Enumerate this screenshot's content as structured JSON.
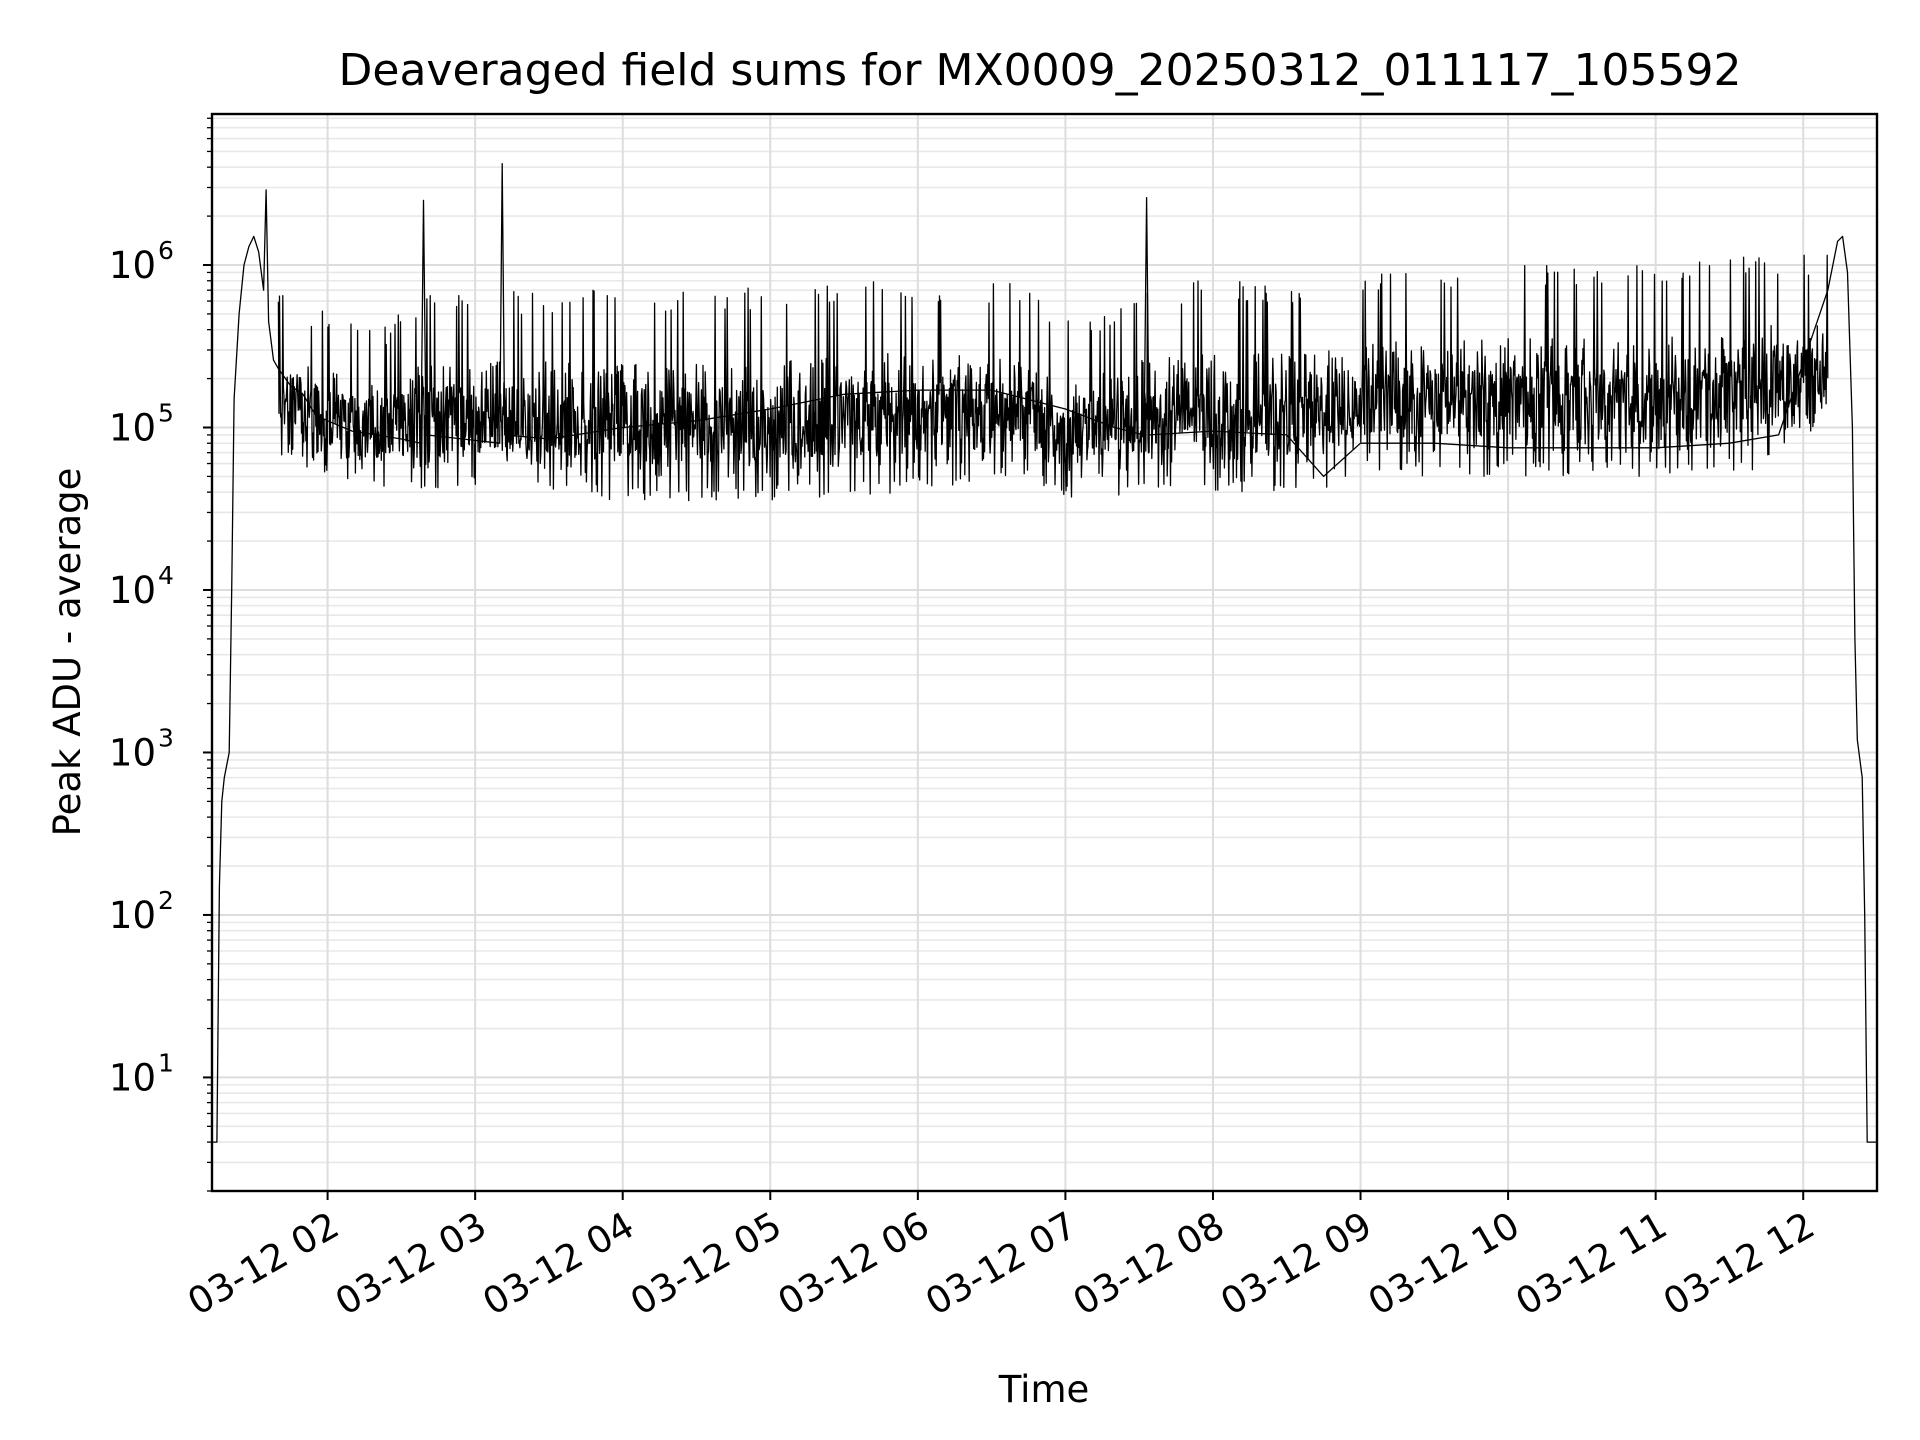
{
  "chart_data": {
    "type": "line",
    "title": "Deaveraged field sums for MX0009_20250312_011117_105592",
    "xlabel": "Time",
    "ylabel": "Peak ADU - average",
    "yscale": "log",
    "xlim": [
      "2025-03-12T01:13",
      "2025-03-12T12:30"
    ],
    "ylim": [
      2,
      8500000
    ],
    "grid": true,
    "grid_minor": true,
    "line_color": "#000000",
    "x_ticks": [
      {
        "value": "2025-03-12T02:00",
        "label": "03-12 02"
      },
      {
        "value": "2025-03-12T03:00",
        "label": "03-12 03"
      },
      {
        "value": "2025-03-12T04:00",
        "label": "03-12 04"
      },
      {
        "value": "2025-03-12T05:00",
        "label": "03-12 05"
      },
      {
        "value": "2025-03-12T06:00",
        "label": "03-12 06"
      },
      {
        "value": "2025-03-12T07:00",
        "label": "03-12 07"
      },
      {
        "value": "2025-03-12T08:00",
        "label": "03-12 08"
      },
      {
        "value": "2025-03-12T09:00",
        "label": "03-12 09"
      },
      {
        "value": "2025-03-12T10:00",
        "label": "03-12 10"
      },
      {
        "value": "2025-03-12T11:00",
        "label": "03-12 11"
      },
      {
        "value": "2025-03-12T12:00",
        "label": "03-12 12"
      }
    ],
    "y_ticks": [
      {
        "value": 10,
        "base": "10",
        "exp": "1"
      },
      {
        "value": 100,
        "base": "10",
        "exp": "2"
      },
      {
        "value": 1000,
        "base": "10",
        "exp": "3"
      },
      {
        "value": 10000,
        "base": "10",
        "exp": "4"
      },
      {
        "value": 100000,
        "base": "10",
        "exp": "5"
      },
      {
        "value": 1000000,
        "base": "10",
        "exp": "6"
      }
    ],
    "series": [
      {
        "points": [
          [
            "2025-03-12T01:13",
            4
          ],
          [
            "2025-03-12T01:15",
            4
          ],
          [
            "2025-03-12T01:16",
            150
          ],
          [
            "2025-03-12T01:17",
            500
          ],
          [
            "2025-03-12T01:18",
            700
          ],
          [
            "2025-03-12T01:20",
            1000
          ],
          [
            "2025-03-12T01:21",
            10000
          ],
          [
            "2025-03-12T01:22",
            150000
          ],
          [
            "2025-03-12T01:24",
            500000
          ],
          [
            "2025-03-12T01:26",
            1000000
          ],
          [
            "2025-03-12T01:28",
            1300000
          ],
          [
            "2025-03-12T01:30",
            1500000
          ],
          [
            "2025-03-12T01:32",
            1200000
          ],
          [
            "2025-03-12T01:34",
            700000
          ],
          [
            "2025-03-12T01:35",
            2900000
          ],
          [
            "2025-03-12T01:36",
            450000
          ],
          [
            "2025-03-12T01:38",
            260000
          ],
          [
            "2025-03-12T01:40",
            230000
          ],
          [
            "2025-03-12T01:45",
            180000
          ],
          [
            "2025-03-12T01:50",
            160000
          ],
          [
            "2025-03-12T01:55",
            120000
          ],
          [
            "2025-03-12T02:00",
            110000
          ],
          [
            "2025-03-12T02:10",
            95000
          ],
          [
            "2025-03-12T02:20",
            90000
          ],
          [
            "2025-03-12T02:30",
            85000
          ],
          [
            "2025-03-12T02:38",
            80000
          ],
          [
            "2025-03-12T02:39",
            2500000
          ],
          [
            "2025-03-12T02:40",
            90000
          ],
          [
            "2025-03-12T02:55",
            85000
          ],
          [
            "2025-03-12T03:10",
            80000
          ],
          [
            "2025-03-12T03:11",
            4200000
          ],
          [
            "2025-03-12T03:12",
            90000
          ],
          [
            "2025-03-12T03:30",
            85000
          ],
          [
            "2025-03-12T04:00",
            100000
          ],
          [
            "2025-03-12T04:30",
            110000
          ],
          [
            "2025-03-12T05:00",
            130000
          ],
          [
            "2025-03-12T05:30",
            160000
          ],
          [
            "2025-03-12T06:00",
            170000
          ],
          [
            "2025-03-12T06:30",
            170000
          ],
          [
            "2025-03-12T07:00",
            130000
          ],
          [
            "2025-03-12T07:20",
            100000
          ],
          [
            "2025-03-12T07:32",
            90000
          ],
          [
            "2025-03-12T07:33",
            2600000
          ],
          [
            "2025-03-12T07:34",
            90000
          ],
          [
            "2025-03-12T08:00",
            95000
          ],
          [
            "2025-03-12T08:30",
            90000
          ],
          [
            "2025-03-12T08:45",
            50000
          ],
          [
            "2025-03-12T09:00",
            80000
          ],
          [
            "2025-03-12T09:30",
            80000
          ],
          [
            "2025-03-12T10:00",
            75000
          ],
          [
            "2025-03-12T10:30",
            75000
          ],
          [
            "2025-03-12T11:00",
            75000
          ],
          [
            "2025-03-12T11:30",
            80000
          ],
          [
            "2025-03-12T11:50",
            90000
          ],
          [
            "2025-03-12T12:00",
            250000
          ],
          [
            "2025-03-12T12:10",
            700000
          ],
          [
            "2025-03-12T12:14",
            1400000
          ],
          [
            "2025-03-12T12:16",
            1500000
          ],
          [
            "2025-03-12T12:18",
            900000
          ],
          [
            "2025-03-12T12:20",
            100000
          ],
          [
            "2025-03-12T12:21",
            5000
          ],
          [
            "2025-03-12T12:22",
            1200
          ],
          [
            "2025-03-12T12:24",
            700
          ],
          [
            "2025-03-12T12:25",
            100
          ],
          [
            "2025-03-12T12:26",
            4
          ],
          [
            "2025-03-12T12:30",
            4
          ]
        ],
        "noise_band": [
          [
            "2025-03-12T01:40",
            60000,
            700000
          ],
          [
            "2025-03-12T02:20",
            40000,
            400000
          ],
          [
            "2025-03-12T02:40",
            40000,
            700000
          ],
          [
            "2025-03-12T03:20",
            40000,
            700000
          ],
          [
            "2025-03-12T04:00",
            35000,
            700000
          ],
          [
            "2025-03-12T05:00",
            35000,
            750000
          ],
          [
            "2025-03-12T06:00",
            40000,
            850000
          ],
          [
            "2025-03-12T06:40",
            50000,
            800000
          ],
          [
            "2025-03-12T07:00",
            35000,
            450000
          ],
          [
            "2025-03-12T07:40",
            40000,
            800000
          ],
          [
            "2025-03-12T08:40",
            40000,
            800000
          ],
          [
            "2025-03-12T09:00",
            50000,
            900000
          ],
          [
            "2025-03-12T10:00",
            50000,
            1000000
          ],
          [
            "2025-03-12T11:00",
            50000,
            1000000
          ],
          [
            "2025-03-12T11:40",
            55000,
            1200000
          ],
          [
            "2025-03-12T12:10",
            100000,
            1200000
          ]
        ]
      }
    ]
  }
}
